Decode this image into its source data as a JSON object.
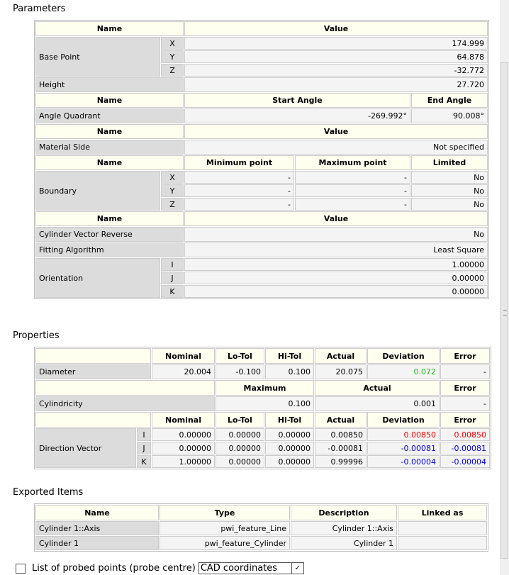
{
  "sections": {
    "parameters": "Parameters",
    "properties": "Properties",
    "exported": "Exported Items"
  },
  "parameters": [
    {
      "type": "header",
      "cells": [
        "Name",
        "Value"
      ]
    },
    {
      "type": "axes",
      "name": "Base Point",
      "rows": [
        [
          "X",
          "174.999"
        ],
        [
          "Y",
          "64.878"
        ],
        [
          "Z",
          "-32.772"
        ]
      ]
    },
    {
      "type": "row",
      "name": "Height",
      "values": [
        "27.720"
      ]
    },
    {
      "type": "header",
      "cells": [
        "Name",
        "Start Angle",
        "End Angle"
      ]
    },
    {
      "type": "row",
      "name": "Angle Quadrant",
      "values": [
        "-269.992°",
        "90.008°"
      ]
    },
    {
      "type": "header",
      "cells": [
        "Name",
        "Value"
      ]
    },
    {
      "type": "row",
      "name": "Material Side",
      "values": [
        "Not specified"
      ]
    },
    {
      "type": "header",
      "cells": [
        "Name",
        "Minimum point",
        "Maximum point",
        "Limited"
      ]
    },
    {
      "type": "axes",
      "name": "Boundary",
      "rows": [
        [
          "X",
          "-",
          "-",
          "No"
        ],
        [
          "Y",
          "-",
          "-",
          "No"
        ],
        [
          "Z",
          "-",
          "-",
          "No"
        ]
      ]
    },
    {
      "type": "header",
      "cells": [
        "Name",
        "Value"
      ]
    },
    {
      "type": "row",
      "name": "Cylinder Vector Reverse",
      "values": [
        "No"
      ]
    },
    {
      "type": "row",
      "name": "Fitting Algorithm",
      "values": [
        "Least Square"
      ]
    },
    {
      "type": "axes",
      "name": "Orientation",
      "rows": [
        [
          "I",
          "1.00000"
        ],
        [
          "J",
          "0.00000"
        ],
        [
          "K",
          "0.00000"
        ]
      ]
    }
  ],
  "properties": {
    "header1": [
      "",
      "Nominal",
      "Lo-Tol",
      "Hi-Tol",
      "Actual",
      "Deviation",
      "Error"
    ],
    "diameter": {
      "name": "Diameter",
      "values": [
        "20.004",
        "-0.100",
        "0.100",
        "20.075",
        "0.072",
        "-"
      ],
      "deviation_color": "#22bb22"
    },
    "header2": [
      "",
      "Maximum",
      "Actual",
      "Error"
    ],
    "cylindricity": {
      "name": "Cylindricity",
      "values": [
        "0.100",
        "0.001",
        "-"
      ]
    },
    "header3": [
      "",
      "Nominal",
      "Lo-Tol",
      "Hi-Tol",
      "Actual",
      "Deviation",
      "Error"
    ],
    "direction": {
      "name": "Direction Vector",
      "rows": [
        {
          "axis": "I",
          "values": [
            "0.00000",
            "0.00000",
            "0.00000",
            "0.00850",
            "0.00850",
            "0.00850"
          ],
          "color": "#ff0000"
        },
        {
          "axis": "J",
          "values": [
            "0.00000",
            "0.00000",
            "0.00000",
            "-0.00081",
            "-0.00081",
            "-0.00081"
          ],
          "color": "#0000ee"
        },
        {
          "axis": "K",
          "values": [
            "1.00000",
            "0.00000",
            "0.00000",
            "0.99996",
            "-0.00004",
            "-0.00004"
          ],
          "color": "#0000ee"
        }
      ]
    }
  },
  "exported": {
    "headers": [
      "Name",
      "Type",
      "Description",
      "Linked as"
    ],
    "rows": [
      [
        "Cylinder 1::Axis",
        "pwi_feature_Line",
        "Cylinder 1::Axis",
        ""
      ],
      [
        "Cylinder 1",
        "pwi_feature_Cylinder",
        "Cylinder 1",
        ""
      ]
    ]
  },
  "footer": {
    "checkbox_label": "List of probed points (probe centre)",
    "checkbox_checked": false,
    "select_value": "CAD coordinates"
  }
}
